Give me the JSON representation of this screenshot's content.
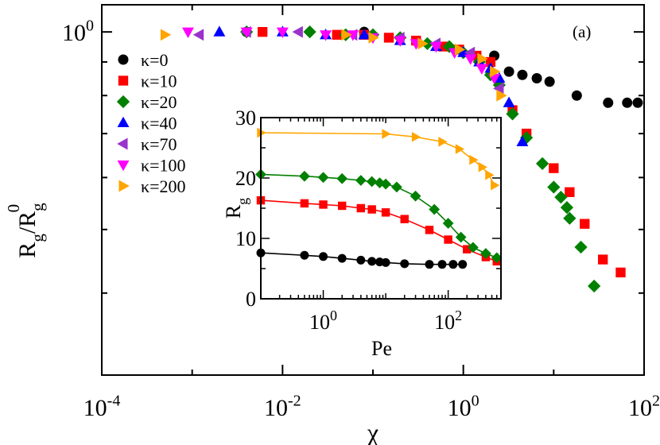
{
  "chart_data": [
    {
      "type": "scatter",
      "panel_label": "(a)",
      "xscale": "log",
      "yscale": "log",
      "xlabel": "χ",
      "ylabel": {
        "base": "R",
        "sub1": "g",
        "slash": "/R",
        "sub2": "g",
        "sup": "0"
      },
      "xlim": [
        0.0001,
        100
      ],
      "ylim": [
        0.3,
        1.1
      ],
      "x_ticks": [
        {
          "value": 0.0001,
          "base": "10",
          "exp": "-4"
        },
        {
          "value": 0.01,
          "base": "10",
          "exp": "-2"
        },
        {
          "value": 1,
          "base": "10",
          "exp": "0"
        },
        {
          "value": 100,
          "base": "10",
          "exp": "2"
        }
      ],
      "y_ticks": [
        {
          "value": 1,
          "base": "10",
          "exp": "0"
        }
      ],
      "legend_position": "top-left",
      "series": [
        {
          "name": "κ=0",
          "color": "#000000",
          "marker": "circle",
          "x": [
            0.004,
            0.08,
            2.2,
            3.2,
            4.5,
            6.5,
            9,
            18,
            40,
            65,
            85
          ],
          "y": [
            1.0,
            1.0,
            0.92,
            0.87,
            0.86,
            0.85,
            0.84,
            0.8,
            0.78,
            0.78,
            0.78
          ]
        },
        {
          "name": "κ=10",
          "color": "#ff0000",
          "marker": "square",
          "x": [
            0.006,
            0.04,
            0.08,
            0.15,
            0.3,
            0.6,
            0.9,
            1.4,
            2,
            3.5,
            5,
            10,
            15,
            22,
            35,
            55
          ],
          "y": [
            1.0,
            0.99,
            0.99,
            0.98,
            0.97,
            0.95,
            0.94,
            0.92,
            0.9,
            0.76,
            0.7,
            0.62,
            0.57,
            0.51,
            0.45,
            0.43
          ]
        },
        {
          "name": "κ=20",
          "color": "#008000",
          "marker": "diamond",
          "x": [
            0.004,
            0.02,
            0.05,
            0.1,
            0.2,
            0.4,
            0.7,
            1.0,
            1.5,
            2,
            2.5,
            3.5,
            5,
            7.5,
            10,
            12,
            14,
            15,
            20,
            28
          ],
          "y": [
            1.0,
            1.0,
            0.99,
            0.99,
            0.98,
            0.96,
            0.95,
            0.93,
            0.9,
            0.86,
            0.83,
            0.75,
            0.69,
            0.63,
            0.58,
            0.56,
            0.54,
            0.52,
            0.47,
            0.41
          ]
        },
        {
          "name": "κ=40",
          "color": "#0000ff",
          "marker": "triangle-up",
          "x": [
            0.002,
            0.01,
            0.03,
            0.08,
            0.2,
            0.5,
            1.0,
            1.5,
            2,
            2.5,
            3.2,
            4.5
          ],
          "y": [
            1.0,
            1.0,
            0.99,
            0.99,
            0.97,
            0.95,
            0.93,
            0.9,
            0.88,
            0.85,
            0.78,
            0.68
          ]
        },
        {
          "name": "κ=70",
          "color": "#9933cc",
          "marker": "triangle-left",
          "x": [
            0.0012,
            0.004,
            0.015,
            0.06,
            0.2,
            0.5,
            1.2,
            2.5
          ],
          "y": [
            0.99,
            1.0,
            1.0,
            0.99,
            0.98,
            0.96,
            0.93,
            0.82
          ]
        },
        {
          "name": "κ=100",
          "color": "#ff00ff",
          "marker": "triangle-down",
          "x": [
            0.0009,
            0.004,
            0.01,
            0.03,
            0.06,
            0.1,
            0.2,
            0.3,
            0.5,
            0.8,
            1.2,
            1.6,
            2.2
          ],
          "y": [
            1.0,
            1.0,
            1.0,
            0.99,
            0.99,
            0.98,
            0.97,
            0.96,
            0.95,
            0.93,
            0.91,
            0.88,
            0.85
          ]
        },
        {
          "name": "κ=200",
          "color": "#ffa500",
          "marker": "triangle-right",
          "x": [
            0.0005,
            0.05,
            0.1,
            0.35,
            0.9,
            1.6,
            2.2,
            2.6
          ],
          "y": [
            0.99,
            0.99,
            0.98,
            0.96,
            0.94,
            0.91,
            0.87,
            0.8
          ]
        }
      ]
    },
    {
      "type": "line",
      "inset": true,
      "xscale": "log",
      "xlabel": "Pe",
      "ylabel": {
        "base": "R",
        "sub": "g"
      },
      "xlim": [
        0.1,
        700
      ],
      "ylim": [
        0,
        30
      ],
      "x_ticks": [
        {
          "value": 1,
          "base": "10",
          "exp": "0"
        },
        {
          "value": 100,
          "base": "10",
          "exp": "2"
        }
      ],
      "y_ticks": [
        0,
        10,
        20,
        30
      ],
      "series": [
        {
          "name": "κ=0",
          "color": "#000000",
          "marker": "circle",
          "x": [
            0.1,
            0.5,
            1,
            2,
            4,
            6,
            8,
            10,
            20,
            50,
            80,
            120,
            170
          ],
          "y": [
            7.6,
            7.2,
            7.0,
            6.7,
            6.4,
            6.2,
            6.1,
            6.0,
            5.8,
            5.7,
            5.7,
            5.7,
            5.7
          ]
        },
        {
          "name": "κ=10",
          "color": "#ff0000",
          "marker": "square",
          "x": [
            0.1,
            0.5,
            1,
            2,
            4,
            6,
            10,
            20,
            50,
            100,
            200,
            400,
            600
          ],
          "y": [
            16.3,
            15.8,
            15.6,
            15.4,
            15.0,
            14.8,
            14.3,
            13.2,
            11.4,
            9.8,
            8.2,
            6.9,
            6.2
          ]
        },
        {
          "name": "κ=20",
          "color": "#008000",
          "marker": "diamond",
          "x": [
            0.1,
            0.5,
            1,
            2,
            4,
            6,
            8,
            10,
            15,
            30,
            60,
            100,
            160,
            250,
            400,
            600
          ],
          "y": [
            20.6,
            20.3,
            20.1,
            19.9,
            19.6,
            19.4,
            19.2,
            19.0,
            18.5,
            17.0,
            14.8,
            12.5,
            10.2,
            8.5,
            7.5,
            6.8
          ]
        },
        {
          "name": "κ=200",
          "color": "#ffa500",
          "marker": "triangle-right",
          "x": [
            0.1,
            10,
            30,
            80,
            150,
            250,
            350,
            450,
            550
          ],
          "y": [
            27.5,
            27.3,
            26.8,
            26.0,
            24.8,
            23.0,
            21.8,
            20.5,
            18.8
          ]
        }
      ]
    }
  ]
}
